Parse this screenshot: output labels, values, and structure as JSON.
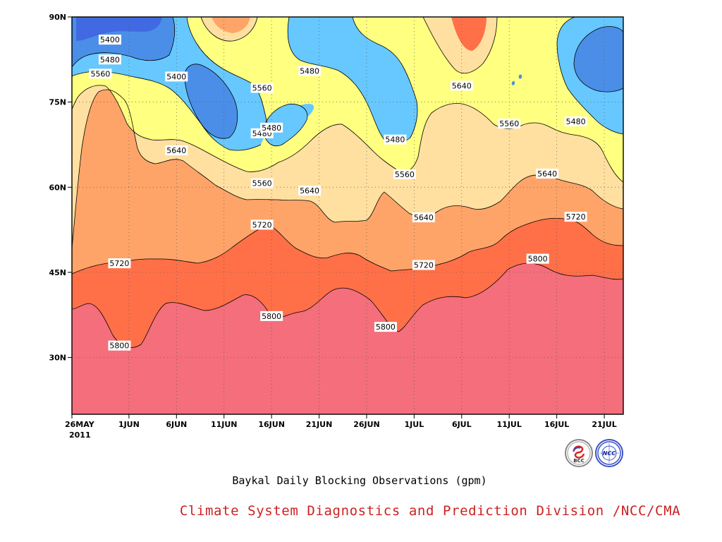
{
  "chart_data": {
    "type": "heatmap",
    "subtype": "filled-contour",
    "title": "Baykal Daily Blocking Observations (gpm)",
    "xlabel": "",
    "ylabel": "",
    "x_tick_labels": [
      "26MAY",
      "1JUN",
      "6JUN",
      "11JUN",
      "16JUN",
      "21JUN",
      "26JUN",
      "1JUL",
      "6JUL",
      "11JUL",
      "16JUL",
      "21JUL"
    ],
    "x_year_label": "2011",
    "x_range": [
      "2011-05-26",
      "2011-07-23"
    ],
    "y_tick_labels": [
      "30N",
      "45N",
      "60N",
      "75N",
      "90N"
    ],
    "ylim": [
      20,
      90
    ],
    "contour_levels": [
      5400,
      5480,
      5560,
      5640,
      5720,
      5800
    ],
    "fill_colors": {
      "below_5400": "#4169e1",
      "5400_5480": "#4a8ee8",
      "5480_5560": "#66c8ff",
      "5560_5640": "#ffff80",
      "5640_5720": "#ffe0a0",
      "5720_5800": "#ffa468",
      "5800_5880": "#ff7048",
      "above_5800": "#f46e7c"
    },
    "grid": "dotted",
    "contour_labels": [
      {
        "value": "5400",
        "date": "2011-05-30",
        "lat": 86
      },
      {
        "value": "5480",
        "date": "2011-05-30",
        "lat": 82.5
      },
      {
        "value": "5560",
        "date": "2011-05-29",
        "lat": 80
      },
      {
        "value": "5400",
        "date": "2011-06-06",
        "lat": 79.5
      },
      {
        "value": "5560",
        "date": "2011-06-15",
        "lat": 77.5
      },
      {
        "value": "5480",
        "date": "2011-06-20",
        "lat": 80.5
      },
      {
        "value": "5480",
        "date": "2011-06-15",
        "lat": 69.5
      },
      {
        "value": "5480",
        "date": "2011-06-16",
        "lat": 70.5
      },
      {
        "value": "5640",
        "date": "2011-06-06",
        "lat": 66.5
      },
      {
        "value": "5560",
        "date": "2011-06-15",
        "lat": 60.7
      },
      {
        "value": "5640",
        "date": "2011-06-20",
        "lat": 59.4
      },
      {
        "value": "5480",
        "date": "2011-06-29",
        "lat": 68.4
      },
      {
        "value": "5560",
        "date": "2011-06-30",
        "lat": 62.3
      },
      {
        "value": "5640",
        "date": "2011-07-06",
        "lat": 77.9
      },
      {
        "value": "5560",
        "date": "2011-07-11",
        "lat": 71.2
      },
      {
        "value": "5480",
        "date": "2011-07-18",
        "lat": 71.6
      },
      {
        "value": "5640",
        "date": "2011-07-15",
        "lat": 62.4
      },
      {
        "value": "5720",
        "date": "2011-06-15",
        "lat": 53.4
      },
      {
        "value": "5640",
        "date": "2011-07-02",
        "lat": 54.7
      },
      {
        "value": "5720",
        "date": "2011-07-18",
        "lat": 54.8
      },
      {
        "value": "5720",
        "date": "2011-05-31",
        "lat": 46.6
      },
      {
        "value": "5720",
        "date": "2011-07-02",
        "lat": 46.3
      },
      {
        "value": "5800",
        "date": "2011-07-14",
        "lat": 47.4
      },
      {
        "value": "5800",
        "date": "2011-06-16",
        "lat": 37.3
      },
      {
        "value": "5800",
        "date": "2011-06-28",
        "lat": 35.4
      },
      {
        "value": "5800",
        "date": "2011-05-31",
        "lat": 32.1
      }
    ]
  },
  "footer": {
    "title": "Baykal Daily Blocking Observations (gpm)",
    "organization": "Climate System Diagnostics and Prediction Division /NCC/CMA"
  },
  "logos": {
    "left": {
      "name": "bcc-logo",
      "text": "BCC"
    },
    "right": {
      "name": "ncc-logo",
      "text": "NCC"
    }
  }
}
